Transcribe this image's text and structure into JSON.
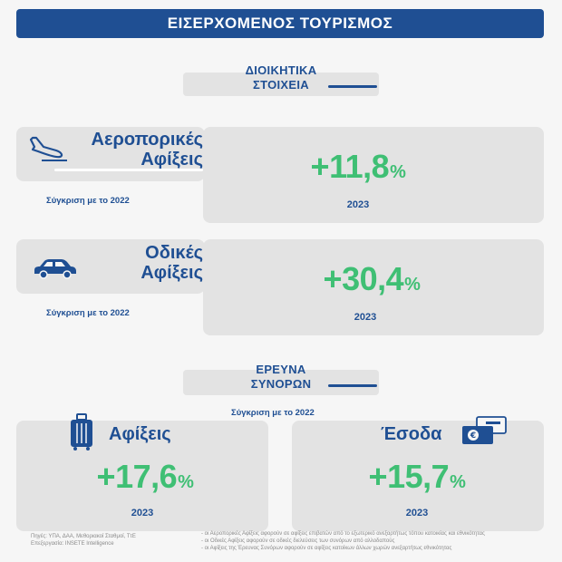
{
  "header": {
    "title": "ΕΙΣΕΡΧΟΜΕΝΟΣ ΤΟΥΡΙΣΜΟΣ"
  },
  "admin_section": {
    "line1": "ΔΙΟΙΚΗΤΙΚΑ",
    "line2": "ΣΤΟΙΧΕΙΑ"
  },
  "air": {
    "title_line1": "Αεροπορικές",
    "title_line2": "Αφίξεις",
    "compare": "Σύγκριση με το 2022",
    "value": "+11,8",
    "unit": "%",
    "year": "2023",
    "icon": "plane-landing-icon"
  },
  "road": {
    "title_line1": "Οδικές",
    "title_line2": "Αφίξεις",
    "compare": "Σύγκριση με το 2022",
    "value": "+30,4",
    "unit": "%",
    "year": "2023",
    "icon": "car-icon"
  },
  "border_section": {
    "line1": "ΕΡΕΥΝΑ",
    "line2": "ΣΥΝΟΡΩΝ",
    "compare": "Σύγκριση με το 2022"
  },
  "arrivals": {
    "title": "Αφίξεις",
    "value": "+17,6",
    "unit": "%",
    "year": "2023",
    "icon": "suitcase-icon"
  },
  "receipts": {
    "title": "Έσοδα",
    "value": "+15,7",
    "unit": "%",
    "year": "2023",
    "icon": "money-cards-icon"
  },
  "footer": {
    "source_line1": "Πηγές: ΥΠΑ, ΔΑΑ, Μεθοριακοί Σταθμοί, ΤτΕ",
    "source_line2": "Επεξεργασία: INSETE Intelligence",
    "note1": "- οι Αεροπορικές Αφίξεις αφορούν σε αφίξεις επιβατών από το εξωτερικό ανεξαρτήτως τόπου κατοικίας και εθνικότητας",
    "note2": "- οι Οδικές Αφίξεις αφορούν σε οδικές διελεύσεις των συνόρων από αλλοδαπούς",
    "note3": "- οι Αφίξεις της Έρευνας Συνόρων αφορούν σε αφίξεις κατοίκων άλλων χωρών ανεξαρτήτως εθνικότητας"
  },
  "colors": {
    "brand_blue": "#1f4f93",
    "value_green": "#3fbf74",
    "card_grey": "#e3e3e3"
  }
}
